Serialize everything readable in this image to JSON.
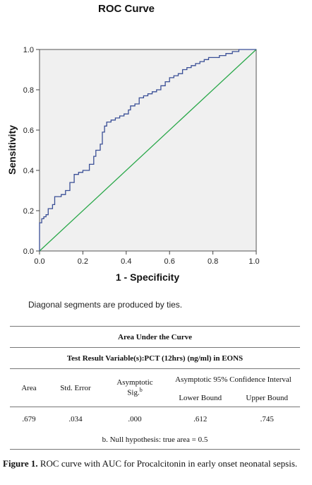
{
  "chart_data": {
    "type": "line",
    "title": "ROC Curve",
    "xlabel": "1 - Specificity",
    "ylabel": "Sensitivity",
    "xlim": [
      0,
      1
    ],
    "ylim": [
      0,
      1
    ],
    "x_ticks": [
      "0.0",
      "0.2",
      "0.4",
      "0.6",
      "0.8",
      "1.0"
    ],
    "y_ticks": [
      "0.0",
      "0.2",
      "0.4",
      "0.6",
      "0.8",
      "1.0"
    ],
    "grid": false,
    "series": [
      {
        "color": "#3a4f96",
        "x": [
          0.0,
          0.0,
          0.01,
          0.01,
          0.02,
          0.02,
          0.03,
          0.03,
          0.04,
          0.04,
          0.06,
          0.06,
          0.07,
          0.07,
          0.1,
          0.1,
          0.12,
          0.12,
          0.14,
          0.14,
          0.16,
          0.16,
          0.18,
          0.18,
          0.2,
          0.2,
          0.23,
          0.23,
          0.25,
          0.25,
          0.26,
          0.26,
          0.28,
          0.28,
          0.29,
          0.29,
          0.3,
          0.3,
          0.31,
          0.31,
          0.33,
          0.33,
          0.35,
          0.35,
          0.37,
          0.37,
          0.39,
          0.39,
          0.41,
          0.41,
          0.42,
          0.42,
          0.44,
          0.44,
          0.46,
          0.46,
          0.48,
          0.48,
          0.5,
          0.5,
          0.52,
          0.52,
          0.54,
          0.54,
          0.56,
          0.56,
          0.58,
          0.58,
          0.6,
          0.6,
          0.62,
          0.62,
          0.64,
          0.64,
          0.66,
          0.66,
          0.68,
          0.68,
          0.7,
          0.7,
          0.72,
          0.72,
          0.74,
          0.74,
          0.76,
          0.76,
          0.78,
          0.78,
          0.8,
          0.8,
          0.83,
          0.83,
          0.86,
          0.86,
          0.89,
          0.89,
          0.92,
          0.92,
          0.94,
          0.94,
          0.97,
          0.97,
          1.0
        ],
        "y": [
          0.0,
          0.14,
          0.14,
          0.16,
          0.16,
          0.17,
          0.17,
          0.18,
          0.18,
          0.21,
          0.21,
          0.23,
          0.23,
          0.27,
          0.27,
          0.28,
          0.28,
          0.3,
          0.3,
          0.34,
          0.34,
          0.38,
          0.38,
          0.39,
          0.39,
          0.4,
          0.4,
          0.43,
          0.43,
          0.47,
          0.47,
          0.5,
          0.5,
          0.53,
          0.53,
          0.59,
          0.59,
          0.62,
          0.62,
          0.64,
          0.64,
          0.65,
          0.65,
          0.66,
          0.66,
          0.67,
          0.67,
          0.68,
          0.68,
          0.7,
          0.7,
          0.72,
          0.72,
          0.73,
          0.73,
          0.76,
          0.76,
          0.77,
          0.77,
          0.78,
          0.78,
          0.79,
          0.79,
          0.8,
          0.8,
          0.82,
          0.82,
          0.84,
          0.84,
          0.86,
          0.86,
          0.87,
          0.87,
          0.88,
          0.88,
          0.9,
          0.9,
          0.91,
          0.91,
          0.92,
          0.92,
          0.93,
          0.93,
          0.94,
          0.94,
          0.95,
          0.95,
          0.96,
          0.96,
          0.96,
          0.96,
          0.97,
          0.97,
          0.98,
          0.98,
          0.99,
          0.99,
          1.0,
          1.0,
          1.0,
          1.0,
          1.0,
          1.0
        ]
      },
      {
        "color": "#2aa84a",
        "x": [
          0.0,
          1.0
        ],
        "y": [
          0.0,
          1.0
        ]
      }
    ],
    "note": "Diagonal segments are produced by ties."
  },
  "table": {
    "title": "Area Under the Curve",
    "subtitle": "Test Result Variable(s):PCT (12hrs) (ng/ml) in EONS",
    "col_area": "Area",
    "col_std_error": "Std. Error",
    "col_asymp_sig": "Asymptotic Sig.",
    "col_asymp_sig_sup": "b",
    "col_ci": "Asymptotic 95% Confidence Interval",
    "col_lower": "Lower Bound",
    "col_upper": "Upper Bound",
    "row": {
      "area": ".679",
      "std_error": ".034",
      "asymp_sig": ".000",
      "lower": ".612",
      "upper": ".745"
    },
    "footnote": "b. Null hypothesis: true area = 0.5"
  },
  "caption": {
    "label": "Figure 1.",
    "text": " ROC curve with AUC for Procalcitonin in early onset neonatal sepsis."
  }
}
